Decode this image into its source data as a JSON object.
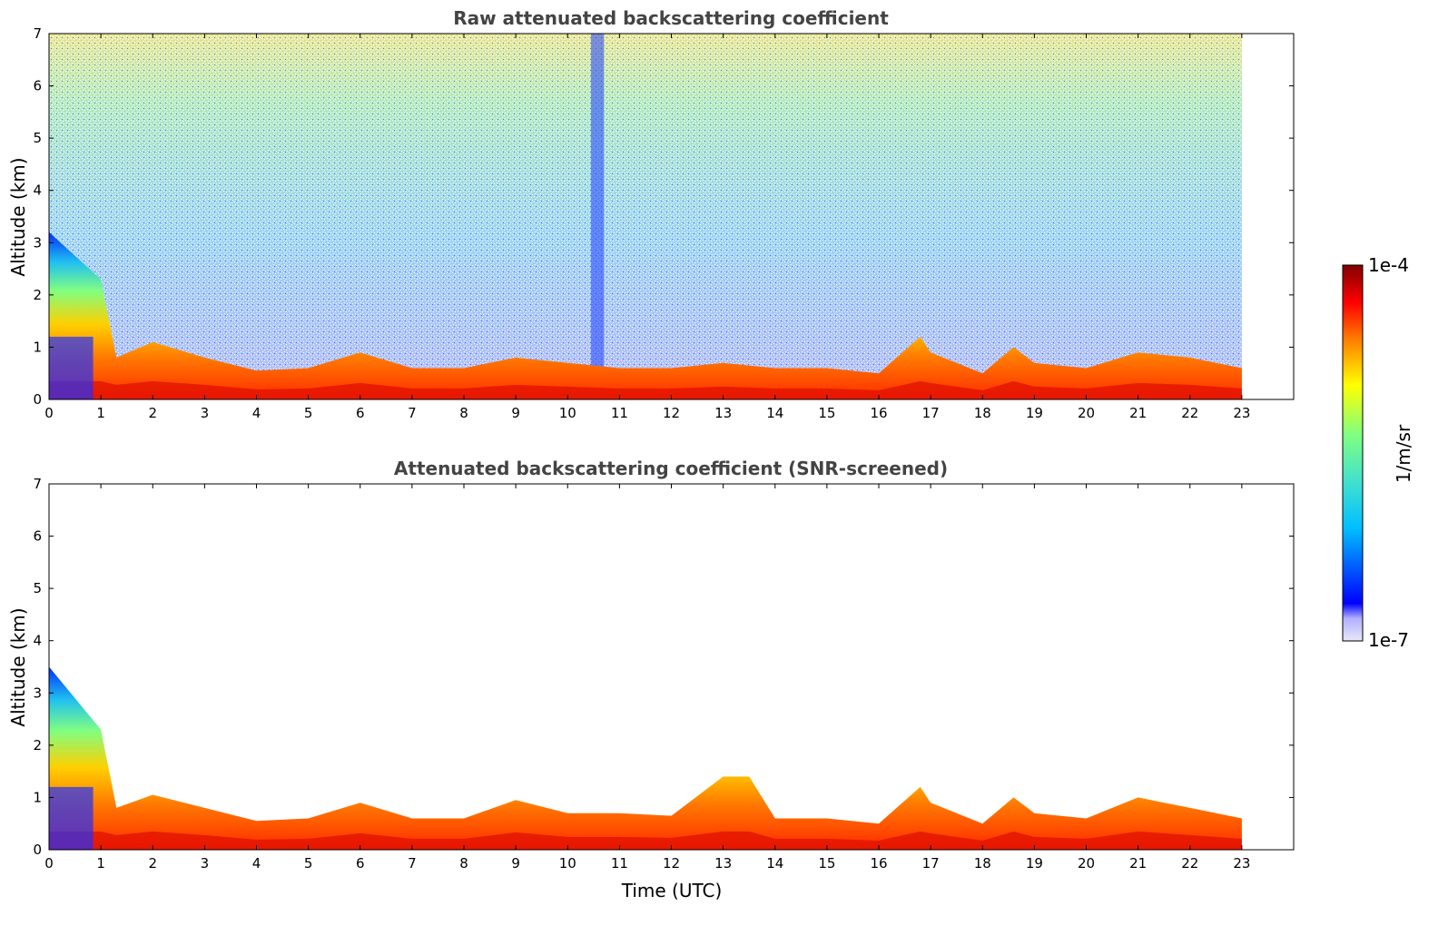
{
  "chart_data": [
    {
      "type": "heatmap",
      "title": "Raw attenuated backscattering coefficient",
      "xlabel": "",
      "ylabel": "Altitude (km)",
      "xlim": [
        0,
        24
      ],
      "ylim": [
        0,
        7
      ],
      "x_ticks": [
        "0",
        "1",
        "2",
        "3",
        "4",
        "5",
        "6",
        "7",
        "8",
        "9",
        "10",
        "11",
        "12",
        "13",
        "14",
        "15",
        "16",
        "17",
        "18",
        "19",
        "20",
        "21",
        "22",
        "23"
      ],
      "y_ticks": [
        "0",
        "1",
        "2",
        "3",
        "4",
        "5",
        "6",
        "7"
      ],
      "data_extent_hours": [
        0,
        23
      ],
      "boundary_layer_top_km": [
        [
          0,
          3.2
        ],
        [
          1,
          2.3
        ],
        [
          1.3,
          0.8
        ],
        [
          2,
          1.1
        ],
        [
          3,
          0.8
        ],
        [
          4,
          0.55
        ],
        [
          5,
          0.6
        ],
        [
          6,
          0.9
        ],
        [
          7,
          0.6
        ],
        [
          8,
          0.6
        ],
        [
          9,
          0.8
        ],
        [
          10,
          0.7
        ],
        [
          11,
          0.6
        ],
        [
          12,
          0.6
        ],
        [
          13,
          0.7
        ],
        [
          14,
          0.6
        ],
        [
          15,
          0.6
        ],
        [
          16,
          0.5
        ],
        [
          16.8,
          1.2
        ],
        [
          17,
          0.9
        ],
        [
          18,
          0.5
        ],
        [
          18.6,
          1.0
        ],
        [
          19,
          0.7
        ],
        [
          20,
          0.6
        ],
        [
          21,
          0.9
        ],
        [
          22,
          0.8
        ],
        [
          23,
          0.6
        ]
      ],
      "noise": "high background noise above boundary layer, increasing with altitude during daytime"
    },
    {
      "type": "heatmap",
      "title": "Attenuated backscattering coefficient (SNR-screened)",
      "xlabel": "Time (UTC)",
      "ylabel": "Altitude (km)",
      "xlim": [
        0,
        24
      ],
      "ylim": [
        0,
        7
      ],
      "x_ticks": [
        "0",
        "1",
        "2",
        "3",
        "4",
        "5",
        "6",
        "7",
        "8",
        "9",
        "10",
        "11",
        "12",
        "13",
        "14",
        "15",
        "16",
        "17",
        "18",
        "19",
        "20",
        "21",
        "22",
        "23"
      ],
      "y_ticks": [
        "0",
        "1",
        "2",
        "3",
        "4",
        "5",
        "6",
        "7"
      ],
      "data_extent_hours": [
        0,
        23
      ],
      "boundary_layer_top_km": [
        [
          0,
          3.5
        ],
        [
          1,
          2.3
        ],
        [
          1.3,
          0.8
        ],
        [
          2,
          1.05
        ],
        [
          3,
          0.8
        ],
        [
          4,
          0.55
        ],
        [
          5,
          0.6
        ],
        [
          6,
          0.9
        ],
        [
          7,
          0.6
        ],
        [
          8,
          0.6
        ],
        [
          9,
          0.95
        ],
        [
          10,
          0.7
        ],
        [
          11,
          0.7
        ],
        [
          12,
          0.65
        ],
        [
          13,
          1.4
        ],
        [
          13.5,
          1.4
        ],
        [
          14,
          0.6
        ],
        [
          15,
          0.6
        ],
        [
          16,
          0.5
        ],
        [
          16.8,
          1.2
        ],
        [
          17,
          0.9
        ],
        [
          18,
          0.5
        ],
        [
          18.6,
          1.0
        ],
        [
          19,
          0.7
        ],
        [
          20,
          0.6
        ],
        [
          21,
          1.0
        ],
        [
          22,
          0.8
        ],
        [
          23,
          0.6
        ]
      ],
      "noise": "screened, white above boundary layer"
    }
  ],
  "colorbar": {
    "min_label": "1e-7",
    "max_label": "1e-4",
    "unit": "1/m/sr",
    "colormap": "jet",
    "colors": [
      "#e8e8f8",
      "#0000ff",
      "#00bfff",
      "#40e0d0",
      "#80ff80",
      "#ffff00",
      "#ff8000",
      "#ff0000",
      "#800000"
    ]
  }
}
